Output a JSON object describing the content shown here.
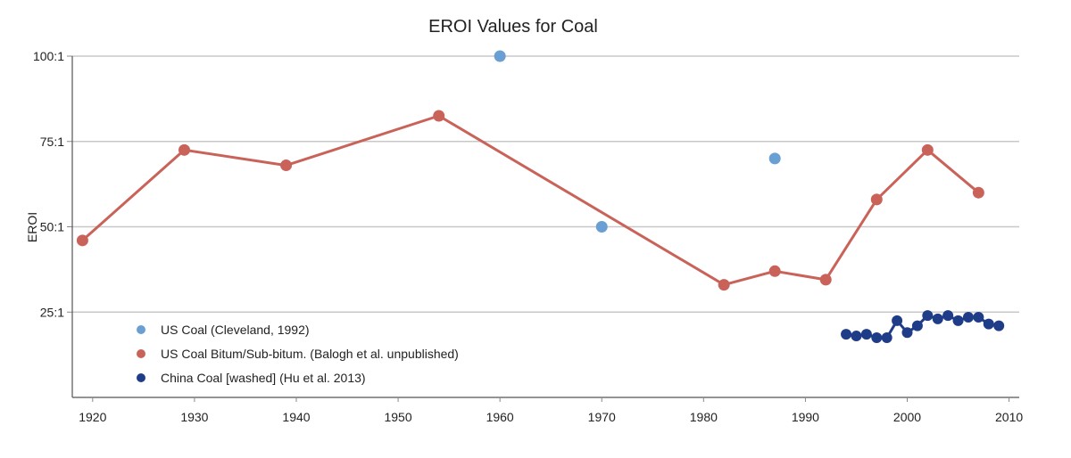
{
  "chart_data": {
    "type": "line",
    "title": "EROI Values for Coal",
    "xlabel": "",
    "ylabel": "EROI",
    "xlim": [
      1918,
      2011
    ],
    "ylim": [
      0,
      100
    ],
    "x_ticks": [
      {
        "value": 1920,
        "label": "1920"
      },
      {
        "value": 1930,
        "label": "1930"
      },
      {
        "value": 1940,
        "label": "1940"
      },
      {
        "value": 1950,
        "label": "1950"
      },
      {
        "value": 1960,
        "label": "1960"
      },
      {
        "value": 1970,
        "label": "1970"
      },
      {
        "value": 1980,
        "label": "1980"
      },
      {
        "value": 1990,
        "label": "1990"
      },
      {
        "value": 2000,
        "label": "2000"
      },
      {
        "value": 2010,
        "label": "2010"
      }
    ],
    "y_ticks": [
      {
        "value": 25,
        "label": "25:1"
      },
      {
        "value": 50,
        "label": "50:1"
      },
      {
        "value": 75,
        "label": "75:1"
      },
      {
        "value": 100,
        "label": "100:1"
      }
    ],
    "grid": true,
    "legend_position": "bottom-left",
    "series": [
      {
        "name": "US Coal (Cleveland, 1992)",
        "color": "#6a9fd4",
        "mode": "markers",
        "x": [
          1960,
          1970,
          1987
        ],
        "y": [
          100,
          50,
          70
        ]
      },
      {
        "name": "US Coal Bitum/Sub-bitum. (Balogh et al. unpublished)",
        "color": "#c9635a",
        "mode": "lines+markers",
        "x": [
          1919,
          1929,
          1939,
          1954,
          1982,
          1987,
          1992,
          1997,
          2002,
          2007
        ],
        "y": [
          46,
          72.5,
          68,
          82.5,
          33,
          37,
          34.5,
          58,
          72.5,
          60
        ]
      },
      {
        "name": "China Coal [washed] (Hu et al. 2013)",
        "color": "#1f3c88",
        "mode": "lines+markers",
        "x": [
          1994,
          1995,
          1996,
          1997,
          1998,
          1999,
          2000,
          2001,
          2002,
          2003,
          2004,
          2005,
          2006,
          2007,
          2008,
          2009
        ],
        "y": [
          18.5,
          18,
          18.5,
          17.5,
          17.5,
          22.5,
          19,
          21,
          24,
          23,
          24,
          22.5,
          23.5,
          23.5,
          21.5,
          21
        ]
      }
    ]
  }
}
